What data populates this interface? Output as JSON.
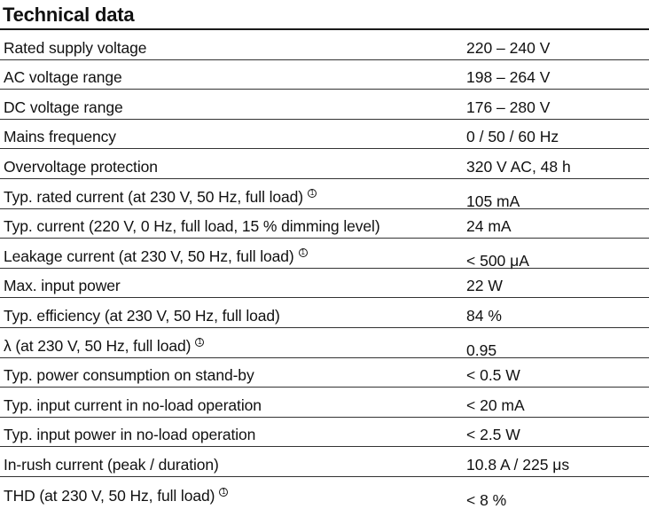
{
  "title": "Technical data",
  "rows": [
    {
      "label": "Rated supply voltage",
      "value": "220 – 240 V"
    },
    {
      "label": "AC voltage range",
      "value": "198 – 264 V"
    },
    {
      "label": "DC voltage range",
      "value": "176 – 280 V"
    },
    {
      "label": "Mains frequency",
      "value": "0 / 50 / 60 Hz"
    },
    {
      "label": "Overvoltage protection",
      "value": "320 V AC, 48 h"
    },
    {
      "label": "Typ. rated current (at 230 V, 50 Hz, full load)",
      "value": "105 mA",
      "note": "1"
    },
    {
      "label": "Typ. current (220 V, 0 Hz, full load, 15 % dimming level)",
      "value": "24 mA"
    },
    {
      "label": "Leakage current (at 230 V, 50 Hz, full load)",
      "value": "< 500 μA",
      "note": "1"
    },
    {
      "label": "Max. input power",
      "value": "22 W"
    },
    {
      "label": "Typ. efficiency (at 230 V, 50 Hz, full load)",
      "value": "84 %"
    },
    {
      "label": "λ (at 230 V, 50 Hz, full load)",
      "value": "0.95",
      "note": "1"
    },
    {
      "label": "Typ. power consumption on stand-by",
      "value": "< 0.5 W"
    },
    {
      "label": "Typ. input current in no-load operation",
      "value": "< 20 mA"
    },
    {
      "label": "Typ. input power in no-load operation",
      "value": "< 2.5 W"
    },
    {
      "label": "In-rush current (peak / duration)",
      "value": "10.8 A / 225 μs"
    },
    {
      "label": "THD (at 230 V, 50 Hz, full load)",
      "value": "< 8 %",
      "note": "1"
    }
  ]
}
